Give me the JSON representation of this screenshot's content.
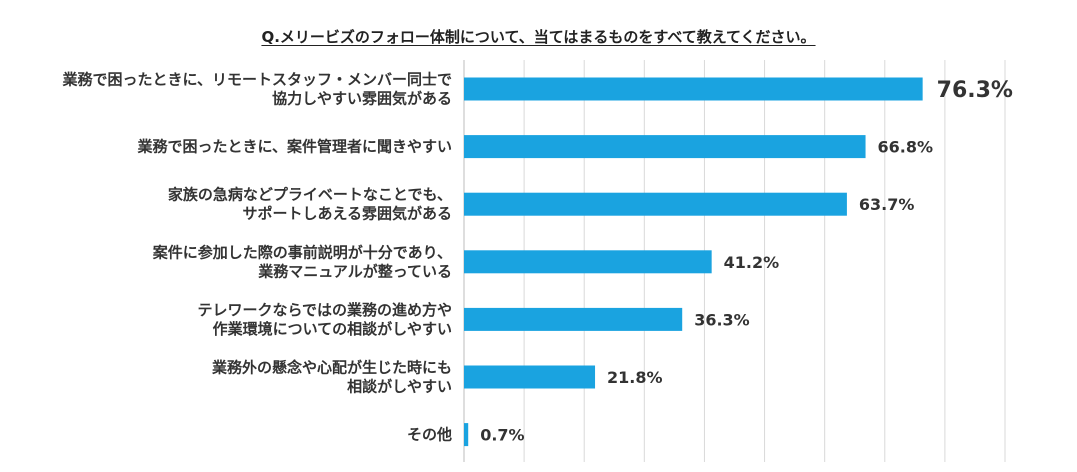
{
  "chart_data": {
    "type": "bar",
    "orientation": "horizontal",
    "title": "Q.メリービズのフォロー体制について、当てはまるものをすべて教えてください。",
    "categories": [
      [
        "業務で困ったときに、リモートスタッフ・メンバー同士で",
        "協力しやすい雰囲気がある"
      ],
      [
        "業務で困ったときに、案件管理者に聞きやすい"
      ],
      [
        "家族の急病などプライベートなことでも、",
        "サポートしあえる雰囲気がある"
      ],
      [
        "案件に参加した際の事前説明が十分であり、",
        "業務マニュアルが整っている"
      ],
      [
        "テレワークならではの業務の進め方や",
        "作業環境についての相談がしやすい"
      ],
      [
        "業務外の懸念や心配が生じた時にも",
        "相談がしやすい"
      ],
      [
        "その他"
      ]
    ],
    "values": [
      76.3,
      66.8,
      63.7,
      41.2,
      36.3,
      21.8,
      0.7
    ],
    "value_labels": [
      "76.3%",
      "66.8%",
      "63.7%",
      "41.2%",
      "36.3%",
      "21.8%",
      "0.7%"
    ],
    "xlim": [
      0,
      90
    ],
    "bar_color": "#1aa3e0",
    "grid": true,
    "xlabel": "",
    "ylabel": ""
  }
}
